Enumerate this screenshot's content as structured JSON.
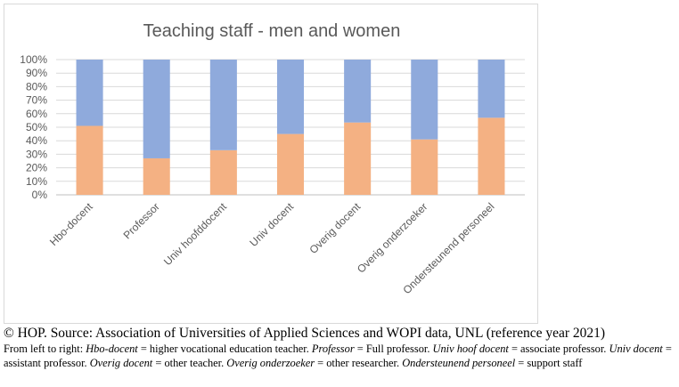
{
  "chart_data": {
    "type": "bar",
    "stacked": true,
    "percent": true,
    "title": "Teaching staff - men and women",
    "categories": [
      "Hbo-docent",
      "Professor",
      "Univ hoofddocent",
      "Univ docent",
      "Overig docent",
      "Overig onderzoeker",
      "Ondersteunend personeel"
    ],
    "series": [
      {
        "color": "#f4b183",
        "values": [
          51,
          27,
          33,
          45,
          53.5,
          41,
          57
        ]
      },
      {
        "color": "#8faadc",
        "values": [
          49,
          73,
          67,
          55,
          46.5,
          59,
          43
        ]
      }
    ],
    "ylim": [
      0,
      100
    ],
    "yticks": [
      "0%",
      "10%",
      "20%",
      "30%",
      "40%",
      "50%",
      "60%",
      "70%",
      "80%",
      "90%",
      "100%"
    ],
    "grid": true,
    "legend": "none"
  },
  "caption": {
    "source": "© HOP. Source: Association of Universities of Applied Sciences and WOPI data, UNL (reference year 2021)",
    "lead": "From left to right: ",
    "terms": [
      {
        "term": "Hbo-docent",
        "meaning": " = higher vocational education teacher. "
      },
      {
        "term": "Professor",
        "meaning": " = Full professor. "
      },
      {
        "term": "Univ hoof docent",
        "meaning": " = associate professor. "
      },
      {
        "term": "Univ docent",
        "meaning": " = assistant professor. "
      },
      {
        "term": "Overig docent",
        "meaning": " = other teacher. "
      },
      {
        "term": "Overig onderzoeker",
        "meaning": " = other researcher. "
      },
      {
        "term": "Ondersteunend personeel",
        "meaning": " = support staff"
      }
    ]
  }
}
